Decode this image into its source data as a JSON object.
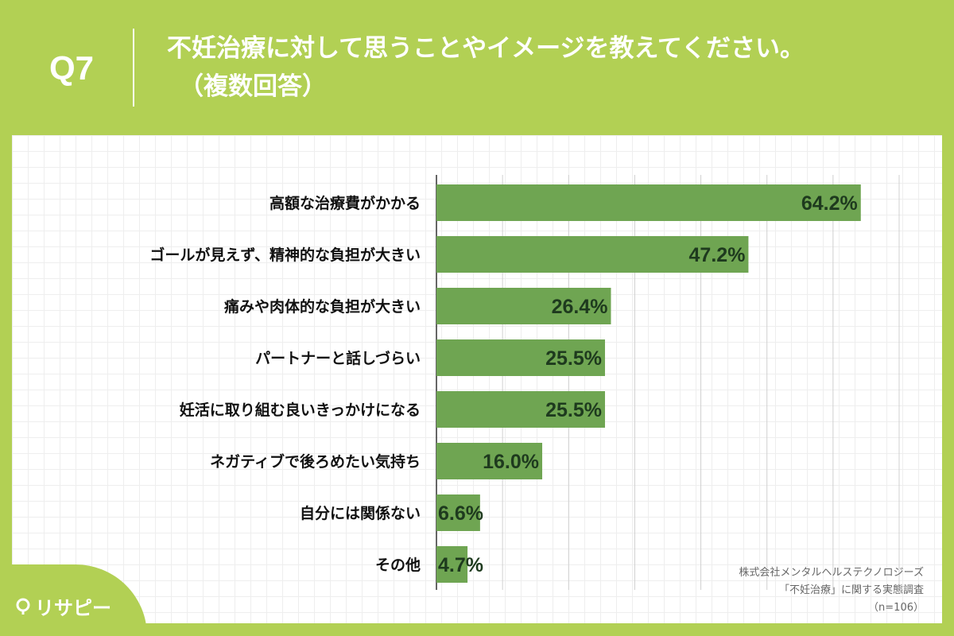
{
  "header": {
    "question_number": "Q7",
    "title": "不妊治療に対して思うことやイメージを教えてください。",
    "subtitle": "（複数回答）"
  },
  "chart_data": {
    "type": "bar",
    "orientation": "horizontal",
    "categories": [
      "高額な治療費がかかる",
      "ゴールが見えず、精神的な負担が大きい",
      "痛みや肉体的な負担が大きい",
      "パートナーと話しづらい",
      "妊活に取り組む良いきっかけになる",
      "ネガティブで後ろめたい気持ち",
      "自分には関係ない",
      "その他"
    ],
    "values": [
      64.2,
      47.2,
      26.4,
      25.5,
      25.5,
      16.0,
      6.6,
      4.7
    ],
    "value_labels": [
      "64.2%",
      "47.2%",
      "26.4%",
      "25.5%",
      "25.5%",
      "16.0%",
      "6.6%",
      "4.7%"
    ],
    "xlim": [
      0,
      70
    ],
    "grid": true,
    "bar_color": "#6fa552"
  },
  "source": {
    "line1": "株式会社メンタルヘルステクノロジーズ",
    "line2": "「不妊治療」に関する実態調査",
    "line3": "（n=106）"
  },
  "logo": {
    "text": "リサピー",
    "icon": "location-pin-icon"
  },
  "colors": {
    "background": "#b2d054",
    "bar": "#6fa552",
    "value_text": "#1e3a1e"
  }
}
